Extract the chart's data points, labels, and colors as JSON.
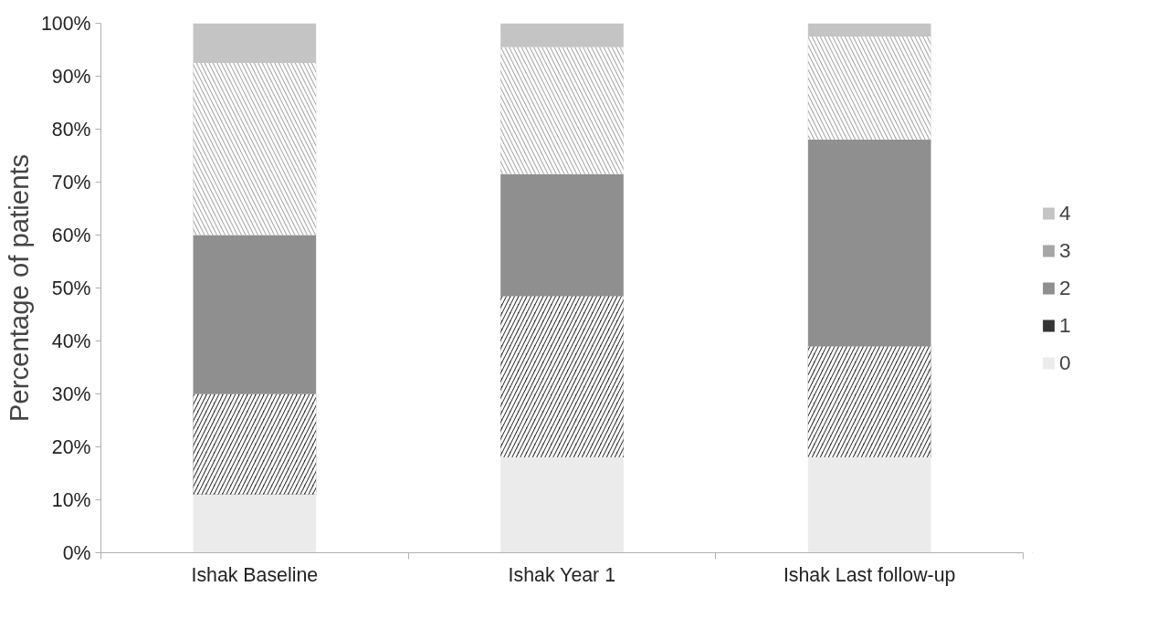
{
  "chart_data": {
    "type": "bar",
    "stacked": true,
    "ylabel": "Percentage of patients",
    "categories": [
      "Ishak Baseline",
      "Ishak Year 1",
      "Ishak Last follow-up"
    ],
    "series": [
      {
        "name": "0",
        "color": "#ebebeb",
        "values": [
          11,
          18,
          18
        ]
      },
      {
        "name": "1",
        "color": "#333333",
        "values": [
          19,
          30.5,
          21
        ]
      },
      {
        "name": "2",
        "color": "#8f8f8f",
        "values": [
          30,
          23,
          39
        ]
      },
      {
        "name": "3",
        "color": "#a6a6a6",
        "values": [
          32.5,
          24,
          19.5
        ]
      },
      {
        "name": "4",
        "color": "#c4c4c4",
        "values": [
          7.5,
          4.5,
          2.5
        ]
      }
    ],
    "ylim": [
      0,
      100
    ],
    "yticks": [
      {
        "value": 0,
        "label": "0%"
      },
      {
        "value": 10,
        "label": "10%"
      },
      {
        "value": 20,
        "label": "20%"
      },
      {
        "value": 30,
        "label": "30%"
      },
      {
        "value": 40,
        "label": "40%"
      },
      {
        "value": 50,
        "label": "50%"
      },
      {
        "value": 60,
        "label": "60%"
      },
      {
        "value": 70,
        "label": "70%"
      },
      {
        "value": 80,
        "label": "80%"
      },
      {
        "value": 90,
        "label": "90%"
      },
      {
        "value": 100,
        "label": "100%"
      }
    ],
    "legend": "right",
    "grid": false
  }
}
